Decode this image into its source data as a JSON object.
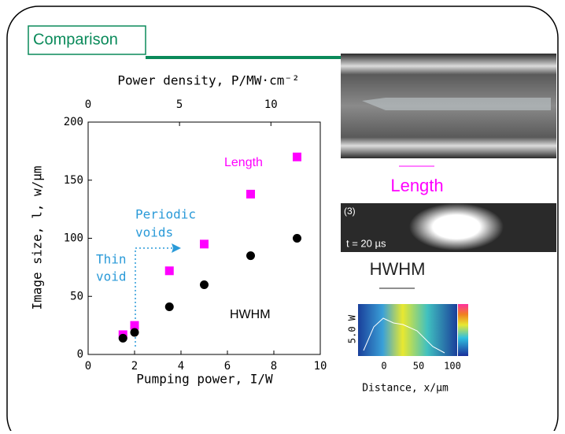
{
  "slide": {
    "title": "Comparison"
  },
  "chart_data": {
    "type": "scatter",
    "x_label": "Pumping power, I/W",
    "y_label": "Image size, l, w/μm",
    "x2_label": "Power density, P/MW·cm⁻²",
    "x": [
      1.5,
      2,
      3.5,
      5,
      7,
      9
    ],
    "series": [
      {
        "name": "Length",
        "color": "#ff00ff",
        "marker": "square",
        "values": [
          17,
          25,
          72,
          95,
          138,
          170
        ]
      },
      {
        "name": "HWHM",
        "color": "#000000",
        "marker": "circle",
        "values": [
          14,
          19,
          41,
          60,
          85,
          100
        ]
      }
    ],
    "xlim": [
      0,
      10
    ],
    "xticks": [
      0,
      2,
      4,
      6,
      8,
      10
    ],
    "ylim": [
      0,
      200
    ],
    "yticks": [
      0,
      50,
      100,
      150,
      200
    ],
    "x2lim": [
      0,
      12.7
    ],
    "x2ticks": [
      0,
      5,
      10
    ],
    "annotations": [
      {
        "lines": [
          "Periodic",
          "voids"
        ]
      },
      {
        "lines": [
          "Thin",
          "void"
        ]
      }
    ]
  },
  "images": {
    "length_caption": "Length",
    "frame_number": "(3)",
    "time": "t = 20 µs",
    "hwhm_caption": "HWHM",
    "inset_power": "5.0 W",
    "inset_xlabel": "Distance, x/µm",
    "inset_xticks": [
      "0",
      "50",
      "100"
    ]
  }
}
